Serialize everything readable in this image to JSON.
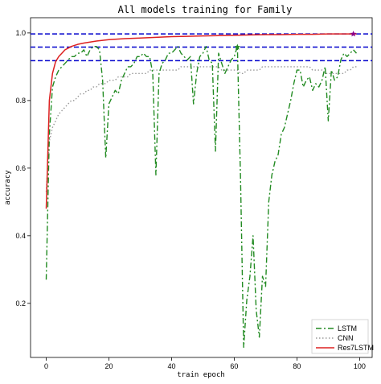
{
  "chart_data": {
    "type": "line",
    "title": "All models training for Family",
    "xlabel": "train epoch",
    "ylabel": "accuracy",
    "xlim": [
      -5,
      104
    ],
    "ylim": [
      0.04,
      1.045
    ],
    "xticks": [
      0,
      20,
      40,
      60,
      80,
      100
    ],
    "yticks": [
      0.2,
      0.4,
      0.6,
      0.8,
      1.0
    ],
    "ytick_labels": [
      "0.2",
      "0.4",
      "0.6",
      "0.8",
      "1.0"
    ],
    "legend_position": "lower right",
    "reference_lines": [
      {
        "y": 0.997,
        "color": "#0000cc",
        "style": "dashed"
      },
      {
        "y": 0.958,
        "color": "#0000cc",
        "style": "dashed"
      },
      {
        "y": 0.918,
        "color": "#0000cc",
        "style": "dashed"
      }
    ],
    "markers": [
      {
        "x": 61,
        "y": 0.958,
        "color": "#228b22",
        "shape": "star"
      },
      {
        "x": 98,
        "y": 0.997,
        "color": "#8b008b",
        "shape": "star"
      }
    ],
    "series": [
      {
        "name": "LSTM",
        "color": "#228b22",
        "style": "dashdot",
        "x": [
          0,
          1,
          2,
          3,
          4,
          5,
          6,
          7,
          8,
          9,
          10,
          11,
          12,
          13,
          14,
          15,
          16,
          17,
          18,
          19,
          20,
          21,
          22,
          23,
          24,
          25,
          26,
          27,
          28,
          29,
          30,
          31,
          32,
          33,
          34,
          35,
          36,
          37,
          38,
          39,
          40,
          41,
          42,
          43,
          44,
          45,
          46,
          47,
          48,
          49,
          50,
          51,
          52,
          53,
          54,
          55,
          56,
          57,
          58,
          59,
          60,
          61,
          62,
          63,
          64,
          65,
          66,
          67,
          68,
          69,
          70,
          71,
          72,
          73,
          74,
          75,
          76,
          77,
          78,
          79,
          80,
          81,
          82,
          83,
          84,
          85,
          86,
          87,
          88,
          89,
          90,
          91,
          92,
          93,
          94,
          95,
          96,
          97,
          98,
          99
        ],
        "values": [
          0.27,
          0.7,
          0.84,
          0.87,
          0.89,
          0.9,
          0.91,
          0.92,
          0.93,
          0.93,
          0.94,
          0.94,
          0.95,
          0.93,
          0.95,
          0.96,
          0.96,
          0.95,
          0.86,
          0.63,
          0.79,
          0.81,
          0.83,
          0.82,
          0.86,
          0.88,
          0.9,
          0.9,
          0.91,
          0.93,
          0.93,
          0.94,
          0.93,
          0.93,
          0.88,
          0.58,
          0.88,
          0.91,
          0.92,
          0.94,
          0.94,
          0.95,
          0.96,
          0.94,
          0.93,
          0.92,
          0.93,
          0.79,
          0.88,
          0.93,
          0.94,
          0.96,
          0.92,
          0.91,
          0.65,
          0.94,
          0.91,
          0.88,
          0.9,
          0.92,
          0.93,
          0.96,
          0.57,
          0.07,
          0.21,
          0.28,
          0.4,
          0.18,
          0.1,
          0.28,
          0.25,
          0.5,
          0.58,
          0.62,
          0.64,
          0.7,
          0.72,
          0.76,
          0.8,
          0.85,
          0.89,
          0.89,
          0.84,
          0.86,
          0.87,
          0.83,
          0.85,
          0.84,
          0.86,
          0.9,
          0.74,
          0.89,
          0.86,
          0.87,
          0.92,
          0.94,
          0.93,
          0.94,
          0.95,
          0.94
        ]
      },
      {
        "name": "CNN",
        "color": "#999999",
        "style": "dotted",
        "x": [
          0,
          1,
          2,
          3,
          4,
          5,
          6,
          7,
          8,
          9,
          10,
          11,
          12,
          13,
          14,
          15,
          16,
          17,
          18,
          19,
          20,
          21,
          22,
          23,
          24,
          25,
          26,
          27,
          28,
          29,
          30,
          31,
          32,
          33,
          34,
          35,
          36,
          37,
          38,
          39,
          40,
          41,
          42,
          43,
          44,
          45,
          46,
          47,
          48,
          49,
          50,
          51,
          52,
          53,
          54,
          55,
          56,
          57,
          58,
          59,
          60,
          61,
          62,
          63,
          64,
          65,
          66,
          67,
          68,
          69,
          70,
          71,
          72,
          73,
          74,
          75,
          76,
          77,
          78,
          79,
          80,
          81,
          82,
          83,
          84,
          85,
          86,
          87,
          88,
          89,
          90,
          91,
          92,
          93,
          94,
          95,
          96,
          97,
          98,
          99
        ],
        "values": [
          0.53,
          0.68,
          0.72,
          0.74,
          0.76,
          0.77,
          0.78,
          0.79,
          0.8,
          0.8,
          0.81,
          0.82,
          0.82,
          0.83,
          0.83,
          0.84,
          0.84,
          0.85,
          0.85,
          0.85,
          0.86,
          0.86,
          0.86,
          0.87,
          0.87,
          0.87,
          0.87,
          0.88,
          0.88,
          0.88,
          0.88,
          0.88,
          0.88,
          0.89,
          0.89,
          0.89,
          0.89,
          0.89,
          0.89,
          0.89,
          0.89,
          0.89,
          0.89,
          0.9,
          0.9,
          0.9,
          0.9,
          0.9,
          0.9,
          0.9,
          0.9,
          0.9,
          0.9,
          0.9,
          0.9,
          0.9,
          0.89,
          0.89,
          0.89,
          0.89,
          0.89,
          0.89,
          0.88,
          0.88,
          0.89,
          0.89,
          0.89,
          0.89,
          0.89,
          0.9,
          0.9,
          0.9,
          0.9,
          0.9,
          0.9,
          0.9,
          0.9,
          0.9,
          0.9,
          0.9,
          0.9,
          0.9,
          0.9,
          0.9,
          0.9,
          0.89,
          0.89,
          0.89,
          0.89,
          0.88,
          0.88,
          0.88,
          0.88,
          0.88,
          0.88,
          0.88,
          0.89,
          0.89,
          0.9,
          0.9
        ]
      },
      {
        "name": "Res7LSTM",
        "color": "#dd2020",
        "style": "solid",
        "x": [
          0,
          1,
          2,
          3,
          4,
          5,
          6,
          7,
          8,
          9,
          10,
          12,
          14,
          16,
          18,
          20,
          25,
          30,
          35,
          40,
          45,
          50,
          55,
          60,
          65,
          70,
          75,
          80,
          85,
          90,
          95,
          99
        ],
        "values": [
          0.48,
          0.8,
          0.88,
          0.915,
          0.93,
          0.94,
          0.95,
          0.955,
          0.96,
          0.963,
          0.966,
          0.97,
          0.973,
          0.976,
          0.978,
          0.98,
          0.983,
          0.985,
          0.987,
          0.989,
          0.99,
          0.991,
          0.992,
          0.993,
          0.994,
          0.995,
          0.995,
          0.996,
          0.996,
          0.997,
          0.997,
          0.997
        ]
      }
    ]
  }
}
